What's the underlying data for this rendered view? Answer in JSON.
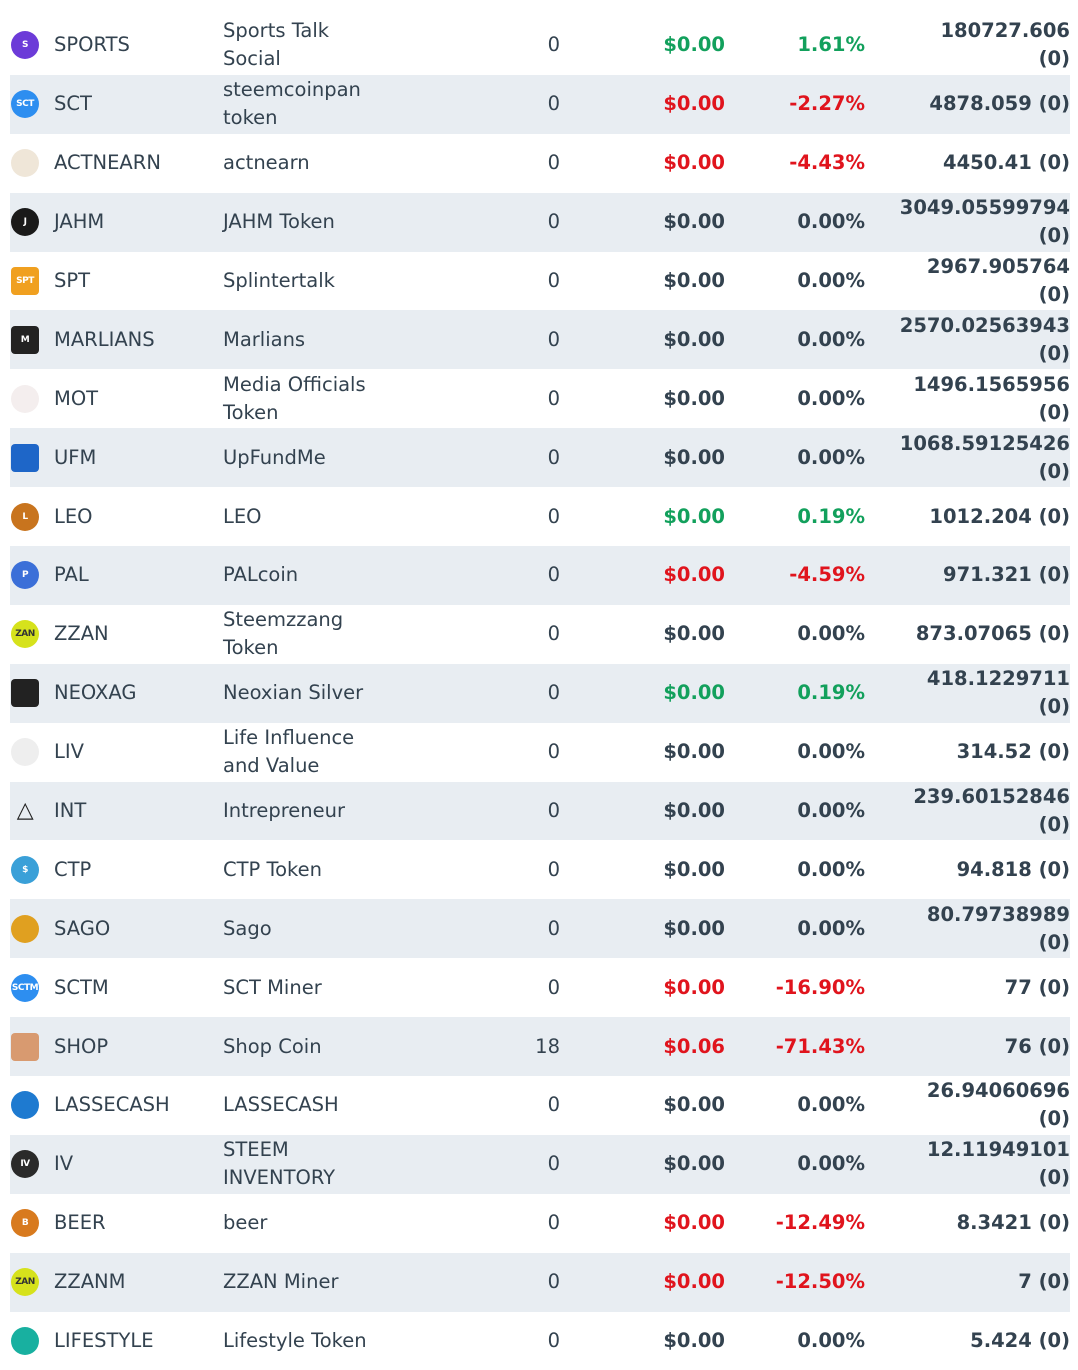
{
  "tokens": [
    {
      "icon": "sports-icon",
      "icon_text": "S",
      "icon_color": "#6c3bd8",
      "symbol": "SPORTS",
      "name": "Sports Talk Social",
      "quantity": "0",
      "price": "$0.00",
      "change": "1.61%",
      "trend": "up",
      "balance": "180727.606 (0)"
    },
    {
      "icon": "sct-icon",
      "icon_text": "SCT",
      "icon_color": "#2d8ef0",
      "symbol": "SCT",
      "name": "steemcoinpan token",
      "quantity": "0",
      "price": "$0.00",
      "change": "-2.27%",
      "trend": "down",
      "balance": "4878.059 (0)"
    },
    {
      "icon": "actnearn-icon",
      "icon_text": "",
      "icon_color": "#efe6d8",
      "symbol": "ACTNEARN",
      "name": "actnearn",
      "quantity": "0",
      "price": "$0.00",
      "change": "-4.43%",
      "trend": "down",
      "balance": "4450.41 (0)"
    },
    {
      "icon": "jahm-icon",
      "icon_text": "J",
      "icon_color": "#1a1a1a",
      "symbol": "JAHM",
      "name": "JAHM Token",
      "quantity": "0",
      "price": "$0.00",
      "change": "0.00%",
      "trend": "flat",
      "balance": "3049.05599794 (0)"
    },
    {
      "icon": "spt-icon",
      "icon_text": "SPT",
      "icon_color": "#f0a020",
      "symbol": "SPT",
      "name": "Splintertalk",
      "quantity": "0",
      "price": "$0.00",
      "change": "0.00%",
      "trend": "flat",
      "balance": "2967.905764 (0)"
    },
    {
      "icon": "marlians-icon",
      "icon_text": "M",
      "icon_color": "#222222",
      "symbol": "MARLIANS",
      "name": "Marlians",
      "quantity": "0",
      "price": "$0.00",
      "change": "0.00%",
      "trend": "flat",
      "balance": "2570.02563943 (0)"
    },
    {
      "icon": "mot-icon",
      "icon_text": "",
      "icon_color": "#f4eeee",
      "symbol": "MOT",
      "name": "Media Officials Token",
      "quantity": "0",
      "price": "$0.00",
      "change": "0.00%",
      "trend": "flat",
      "balance": "1496.1565956 (0)"
    },
    {
      "icon": "ufm-icon",
      "icon_text": "",
      "icon_color": "#1e66c8",
      "symbol": "UFM",
      "name": "UpFundMe",
      "quantity": "0",
      "price": "$0.00",
      "change": "0.00%",
      "trend": "flat",
      "balance": "1068.59125426 (0)"
    },
    {
      "icon": "leo-icon",
      "icon_text": "L",
      "icon_color": "#c8741e",
      "symbol": "LEO",
      "name": "LEO",
      "quantity": "0",
      "price": "$0.00",
      "change": "0.19%",
      "trend": "up",
      "balance": "1012.204 (0)"
    },
    {
      "icon": "pal-icon",
      "icon_text": "P",
      "icon_color": "#3b6fd8",
      "symbol": "PAL",
      "name": "PALcoin",
      "quantity": "0",
      "price": "$0.00",
      "change": "-4.59%",
      "trend": "down",
      "balance": "971.321 (0)"
    },
    {
      "icon": "zzan-icon",
      "icon_text": "ZAN",
      "icon_color": "#d6e21c",
      "symbol": "ZZAN",
      "name": "Steemzzang Token",
      "quantity": "0",
      "price": "$0.00",
      "change": "0.00%",
      "trend": "flat",
      "balance": "873.07065 (0)"
    },
    {
      "icon": "neoxag-icon",
      "icon_text": "",
      "icon_color": "#222222",
      "symbol": "NEOXAG",
      "name": "Neoxian Silver",
      "quantity": "0",
      "price": "$0.00",
      "change": "0.19%",
      "trend": "up",
      "balance": "418.1229711 (0)"
    },
    {
      "icon": "liv-icon",
      "icon_text": "",
      "icon_color": "#eeeeee",
      "symbol": "LIV",
      "name": "Life Influence and Value",
      "quantity": "0",
      "price": "$0.00",
      "change": "0.00%",
      "trend": "flat",
      "balance": "314.52 (0)"
    },
    {
      "icon": "triangle-icon",
      "icon_text": "",
      "icon_color": "#ffffff",
      "symbol": "INT",
      "name": "Intrepreneur",
      "quantity": "0",
      "price": "$0.00",
      "change": "0.00%",
      "trend": "flat",
      "balance": "239.60152846 (0)"
    },
    {
      "icon": "ctp-icon",
      "icon_text": "$",
      "icon_color": "#3aa0d8",
      "symbol": "CTP",
      "name": "CTP Token",
      "quantity": "0",
      "price": "$0.00",
      "change": "0.00%",
      "trend": "flat",
      "balance": "94.818 (0)"
    },
    {
      "icon": "sago-icon",
      "icon_text": "",
      "icon_color": "#e0a020",
      "symbol": "SAGO",
      "name": "Sago",
      "quantity": "0",
      "price": "$0.00",
      "change": "0.00%",
      "trend": "flat",
      "balance": "80.79738989 (0)"
    },
    {
      "icon": "sctm-icon",
      "icon_text": "SCTM",
      "icon_color": "#2d8ef0",
      "symbol": "SCTM",
      "name": "SCT Miner",
      "quantity": "0",
      "price": "$0.00",
      "change": "-16.90%",
      "trend": "down",
      "balance": "77 (0)"
    },
    {
      "icon": "shop-icon",
      "icon_text": "",
      "icon_color": "#d89a70",
      "symbol": "SHOP",
      "name": "Shop Coin",
      "quantity": "18",
      "price": "$0.06",
      "change": "-71.43%",
      "trend": "down",
      "balance": "76 (0)"
    },
    {
      "icon": "lassecash-icon",
      "icon_text": "",
      "icon_color": "#1e7ad0",
      "symbol": "LASSECASH",
      "name": "LASSECASH",
      "quantity": "0",
      "price": "$0.00",
      "change": "0.00%",
      "trend": "flat",
      "balance": "26.94060696 (0)"
    },
    {
      "icon": "iv-icon",
      "icon_text": "IV",
      "icon_color": "#2a2a2a",
      "symbol": "IV",
      "name": "STEEM INVENTORY",
      "quantity": "0",
      "price": "$0.00",
      "change": "0.00%",
      "trend": "flat",
      "balance": "12.11949101 (0)"
    },
    {
      "icon": "beer-icon",
      "icon_text": "B",
      "icon_color": "#d87a1e",
      "symbol": "BEER",
      "name": "beer",
      "quantity": "0",
      "price": "$0.00",
      "change": "-12.49%",
      "trend": "down",
      "balance": "8.3421 (0)"
    },
    {
      "icon": "zzanm-icon",
      "icon_text": "ZAN",
      "icon_color": "#d6e21c",
      "symbol": "ZZANM",
      "name": "ZZAN Miner",
      "quantity": "0",
      "price": "$0.00",
      "change": "-12.50%",
      "trend": "down",
      "balance": "7 (0)"
    },
    {
      "icon": "lifestyle-icon",
      "icon_text": "",
      "icon_color": "#18b0a0",
      "symbol": "LIFESTYLE",
      "name": "Lifestyle Token",
      "quantity": "0",
      "price": "$0.00",
      "change": "0.00%",
      "trend": "flat",
      "balance": "5.424 (0)"
    }
  ],
  "colors": {
    "up": "#12a05c",
    "down": "#e0141d",
    "flat": "#33424f"
  }
}
